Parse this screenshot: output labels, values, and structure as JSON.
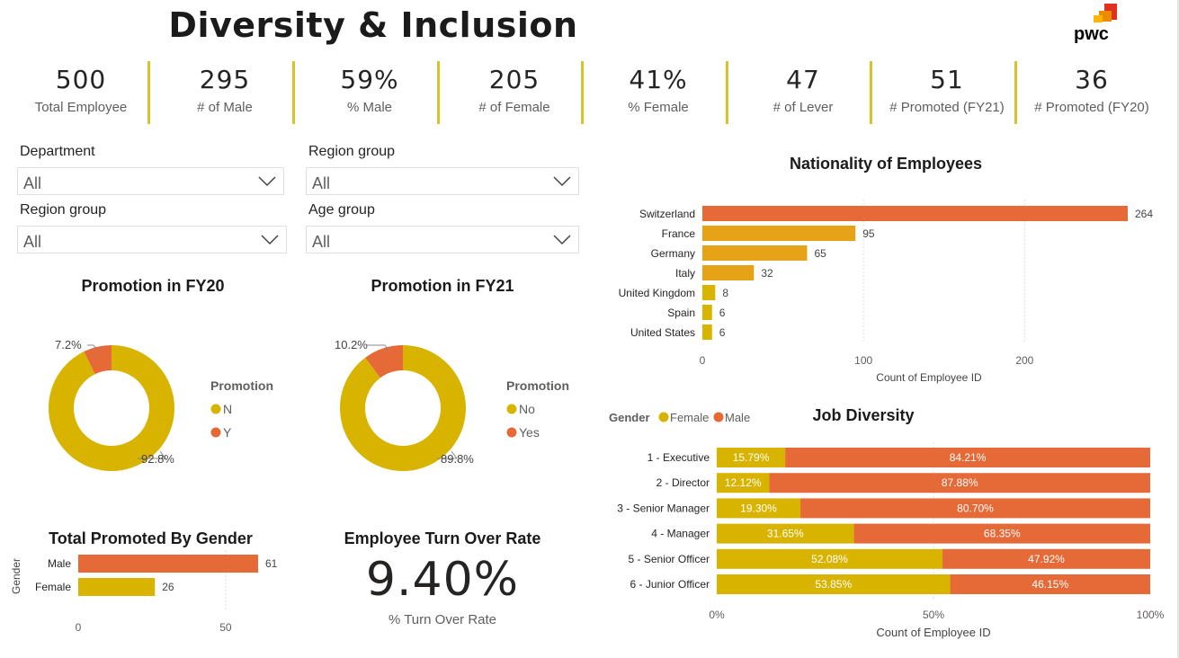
{
  "page": {
    "title": "Diversity & Inclusion",
    "logo_text": "pwc"
  },
  "colors": {
    "female": "#d8b400",
    "male": "#e56a38",
    "accent": "#e6a317",
    "separator": "#d9c22b"
  },
  "kpis": [
    {
      "value": "500",
      "label": "Total Employee"
    },
    {
      "value": "295",
      "label": "# of Male"
    },
    {
      "value": "59%",
      "label": "% Male"
    },
    {
      "value": "205",
      "label": "# of Female"
    },
    {
      "value": "41%",
      "label": "% Female"
    },
    {
      "value": "47",
      "label": "# of Lever"
    },
    {
      "value": "51",
      "label": "# Promoted (FY21)"
    },
    {
      "value": "36",
      "label": "# Promoted (FY20)"
    }
  ],
  "slicers": [
    {
      "label": "Department",
      "value": "All"
    },
    {
      "label": "Region group",
      "value": "All"
    },
    {
      "label": "Region group",
      "value": "All"
    },
    {
      "label": "Age group",
      "value": "All"
    }
  ],
  "turnover": {
    "title": "Employee Turn Over Rate",
    "value": "9.40%",
    "label": "% Turn Over Rate"
  },
  "chart_data": [
    {
      "type": "pie",
      "title": "Promotion in FY20",
      "legend_title": "Promotion",
      "categories": [
        "N",
        "Y"
      ],
      "values": [
        92.8,
        7.2
      ],
      "value_labels": [
        "92.8%",
        "7.2%"
      ]
    },
    {
      "type": "pie",
      "title": "Promotion in FY21",
      "legend_title": "Promotion",
      "categories": [
        "No",
        "Yes"
      ],
      "values": [
        89.8,
        10.2
      ],
      "value_labels": [
        "89.8%",
        "10.2%"
      ]
    },
    {
      "type": "bar",
      "title": "Nationality of Employees",
      "categories": [
        "Switzerland",
        "France",
        "Germany",
        "Italy",
        "United Kingdom",
        "Spain",
        "United States"
      ],
      "values": [
        264,
        95,
        65,
        32,
        8,
        6,
        6
      ],
      "xlabel": "Count of Employee ID",
      "ylabel": "",
      "xlim": [
        0,
        264
      ],
      "ticks": [
        "0",
        "100",
        "200"
      ]
    },
    {
      "type": "bar",
      "title": "Job Diversity",
      "legend_title": "Gender",
      "categories": [
        "1 - Executive",
        "2 - Director",
        "3 - Senior Manager",
        "4 - Manager",
        "5 - Senior Officer",
        "6 - Junior Officer"
      ],
      "series": [
        {
          "name": "Female",
          "values": [
            15.79,
            12.12,
            19.3,
            31.65,
            52.08,
            53.85
          ],
          "labels": [
            "15.79%",
            "12.12%",
            "19.30%",
            "31.65%",
            "52.08%",
            "53.85%"
          ]
        },
        {
          "name": "Male",
          "values": [
            84.21,
            87.88,
            80.7,
            68.35,
            47.92,
            46.15
          ],
          "labels": [
            "84.21%",
            "87.88%",
            "80.70%",
            "68.35%",
            "47.92%",
            "46.15%"
          ]
        }
      ],
      "xlabel": "Count of Employee ID",
      "ticks": [
        "0%",
        "50%",
        "100%"
      ]
    },
    {
      "type": "bar",
      "title": "Total Promoted By Gender",
      "categories": [
        "Male",
        "Female"
      ],
      "values": [
        61,
        26
      ],
      "ylabel": "Gender",
      "xlim": [
        0,
        63
      ],
      "ticks": [
        "0",
        "50"
      ]
    }
  ]
}
